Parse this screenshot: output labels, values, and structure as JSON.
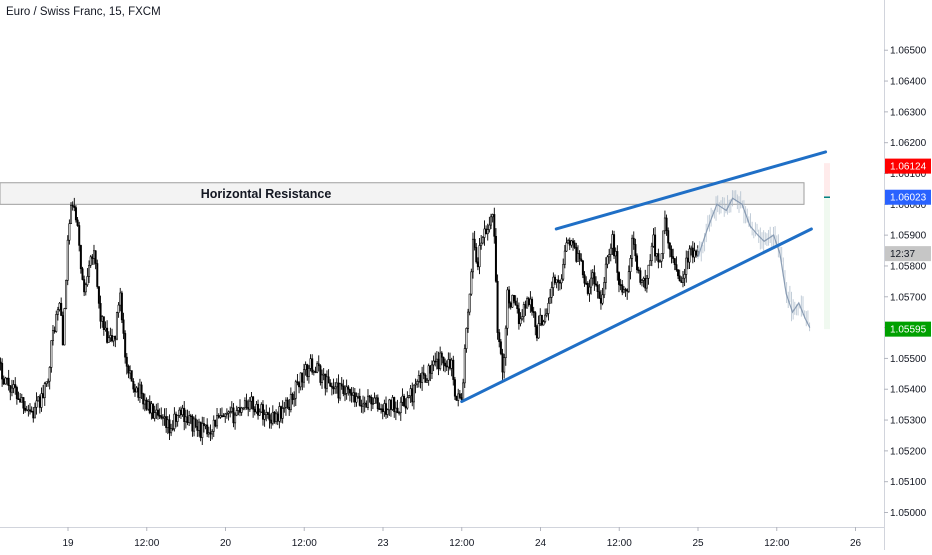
{
  "chart_data": {
    "type": "candlestick",
    "title": "Euro / Swiss Franc, 15, FXCM",
    "colors": {
      "candle": "#000000",
      "projection": "#a9b8c8",
      "trendline": "#1f6fc6",
      "resistance_fill": "#f3f3f3",
      "resistance_border": "#9e9e9e",
      "price_red": "#ff0000",
      "price_blue": "#2962ff",
      "price_green": "#00a000",
      "countdown_bg": "#c6c6c6"
    },
    "y_axis": {
      "ticks": [
        "1.06500",
        "1.06400",
        "1.06300",
        "1.06200",
        "1.06100",
        "1.06000",
        "1.05900",
        "1.05800",
        "1.05700",
        "1.05600",
        "1.05500",
        "1.05400",
        "1.05300",
        "1.05200",
        "1.05100",
        "1.05000"
      ],
      "range": [
        1.0494,
        1.0665
      ]
    },
    "x_axis": {
      "ticks": [
        "19",
        "12:00",
        "20",
        "12:00",
        "23",
        "12:00",
        "24",
        "12:00",
        "25",
        "12:00",
        "26"
      ],
      "tick_positions_days": [
        0,
        0.5,
        1,
        1.5,
        2,
        2.5,
        3,
        3.5,
        4,
        4.5,
        5
      ],
      "range_days": [
        -0.46,
        5.2
      ]
    },
    "price_path": [
      [
        -0.46,
        1.0549
      ],
      [
        -0.38,
        1.0542
      ],
      [
        -0.3,
        1.0537
      ],
      [
        -0.22,
        1.0532
      ],
      [
        -0.14,
        1.054
      ],
      [
        -0.09,
        1.056
      ],
      [
        -0.05,
        1.0568
      ],
      [
        -0.03,
        1.0555
      ],
      [
        0.0,
        1.059
      ],
      [
        0.03,
        1.0601
      ],
      [
        0.07,
        1.0588
      ],
      [
        0.1,
        1.057
      ],
      [
        0.14,
        1.0585
      ],
      [
        0.17,
        1.0582
      ],
      [
        0.2,
        1.0565
      ],
      [
        0.25,
        1.0555
      ],
      [
        0.3,
        1.0557
      ],
      [
        0.33,
        1.0573
      ],
      [
        0.37,
        1.0545
      ],
      [
        0.43,
        1.0541
      ],
      [
        0.5,
        1.0535
      ],
      [
        0.57,
        1.053
      ],
      [
        0.65,
        1.0527
      ],
      [
        0.72,
        1.0533
      ],
      [
        0.8,
        1.0528
      ],
      [
        0.88,
        1.0526
      ],
      [
        0.94,
        1.053
      ],
      [
        1.0,
        1.053
      ],
      [
        1.06,
        1.0532
      ],
      [
        1.12,
        1.0536
      ],
      [
        1.2,
        1.0534
      ],
      [
        1.28,
        1.0531
      ],
      [
        1.34,
        1.0532
      ],
      [
        1.4,
        1.0535
      ],
      [
        1.47,
        1.0543
      ],
      [
        1.55,
        1.0548
      ],
      [
        1.63,
        1.0543
      ],
      [
        1.7,
        1.054
      ],
      [
        1.78,
        1.0538
      ],
      [
        1.86,
        1.0535
      ],
      [
        1.92,
        1.0537
      ],
      [
        2.0,
        1.0533
      ],
      [
        2.06,
        1.0535
      ],
      [
        2.12,
        1.0535
      ],
      [
        2.18,
        1.0538
      ],
      [
        2.25,
        1.0544
      ],
      [
        2.32,
        1.0547
      ],
      [
        2.38,
        1.055
      ],
      [
        2.43,
        1.0549
      ],
      [
        2.46,
        1.0539
      ],
      [
        2.5,
        1.0536
      ],
      [
        2.52,
        1.0553
      ],
      [
        2.55,
        1.0568
      ],
      [
        2.57,
        1.059
      ],
      [
        2.6,
        1.058
      ],
      [
        2.63,
        1.059
      ],
      [
        2.66,
        1.059
      ],
      [
        2.7,
        1.0599
      ],
      [
        2.73,
        1.0557
      ],
      [
        2.76,
        1.0545
      ],
      [
        2.79,
        1.057
      ],
      [
        2.82,
        1.0568
      ],
      [
        2.86,
        1.0563
      ],
      [
        2.9,
        1.0567
      ],
      [
        2.94,
        1.057
      ],
      [
        2.97,
        1.0558
      ],
      [
        3.0,
        1.0562
      ],
      [
        3.04,
        1.0566
      ],
      [
        3.08,
        1.0575
      ],
      [
        3.12,
        1.0573
      ],
      [
        3.17,
        1.0591
      ],
      [
        3.21,
        1.0585
      ],
      [
        3.25,
        1.0583
      ],
      [
        3.3,
        1.0573
      ],
      [
        3.34,
        1.0577
      ],
      [
        3.38,
        1.0568
      ],
      [
        3.42,
        1.0582
      ],
      [
        3.46,
        1.0588
      ],
      [
        3.5,
        1.0575
      ],
      [
        3.54,
        1.057
      ],
      [
        3.58,
        1.0587
      ],
      [
        3.63,
        1.0577
      ],
      [
        3.67,
        1.0573
      ],
      [
        3.71,
        1.059
      ],
      [
        3.75,
        1.0579
      ],
      [
        3.79,
        1.0593
      ],
      [
        3.82,
        1.0585
      ],
      [
        3.86,
        1.058
      ],
      [
        3.9,
        1.0575
      ],
      [
        3.93,
        1.0582
      ],
      [
        3.96,
        1.0584
      ],
      [
        4.0,
        1.0583
      ]
    ],
    "projection_path": [
      [
        4.0,
        1.0583
      ],
      [
        4.06,
        1.0592
      ],
      [
        4.12,
        1.06
      ],
      [
        4.18,
        1.0598
      ],
      [
        4.22,
        1.0602
      ],
      [
        4.28,
        1.06
      ],
      [
        4.33,
        1.0593
      ],
      [
        4.38,
        1.059
      ],
      [
        4.42,
        1.0588
      ],
      [
        4.48,
        1.059
      ],
      [
        4.52,
        1.0584
      ],
      [
        4.56,
        1.0571
      ],
      [
        4.6,
        1.0565
      ],
      [
        4.64,
        1.0568
      ],
      [
        4.68,
        1.0563
      ],
      [
        4.71,
        1.056
      ]
    ],
    "annotations": {
      "resistance_label": "Horizontal Resistance",
      "resistance_zone": [
        1.06,
        1.0607
      ],
      "lower_trendline": [
        [
          2.5,
          1.0536
        ],
        [
          4.72,
          1.0592
        ]
      ],
      "upper_trendline": [
        [
          3.1,
          1.0592
        ],
        [
          4.81,
          1.0617
        ]
      ]
    },
    "price_labels": [
      {
        "text": "1.06124",
        "value": 1.06124,
        "color": "#ff0000"
      },
      {
        "text": "1.06023",
        "value": 1.06023,
        "color": "#2962ff"
      },
      {
        "text": "12:37",
        "value": 1.0584,
        "color": "#c6c6c6"
      },
      {
        "text": "1.05595",
        "value": 1.05595,
        "color": "#00a000"
      }
    ],
    "grid": false
  }
}
